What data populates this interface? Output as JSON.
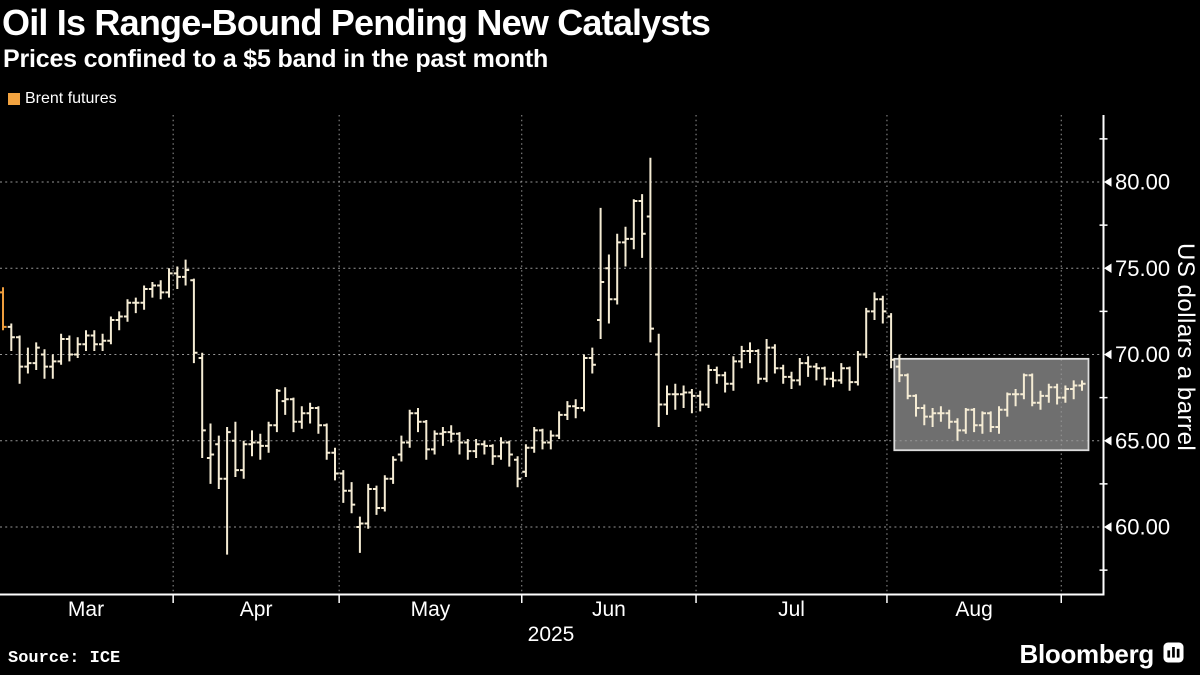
{
  "header": {
    "title": "Oil Is Range-Bound Pending New Catalysts",
    "subtitle": "Prices confined to a $5 band in the past month"
  },
  "legend": {
    "label": "Brent futures",
    "swatch_color": "#f2a340"
  },
  "footer": {
    "source": "Source: ICE",
    "brand": "Bloomberg"
  },
  "y_axis": {
    "title": "US dollars a barrel",
    "major_ticks": [
      {
        "value": 80,
        "label": "80.00"
      },
      {
        "value": 75,
        "label": "75.00"
      },
      {
        "value": 70,
        "label": "70.00"
      },
      {
        "value": 65,
        "label": "65.00"
      },
      {
        "value": 60,
        "label": "60.00"
      }
    ],
    "minor_tick_values": [
      82.5,
      77.5,
      72.5,
      67.5,
      62.5,
      57.5
    ]
  },
  "x_axis": {
    "year_label": "2025",
    "months": [
      {
        "label": "Mar",
        "bars": 21
      },
      {
        "label": "Apr",
        "bars": 20
      },
      {
        "label": "May",
        "bars": 22
      },
      {
        "label": "Jun",
        "bars": 21
      },
      {
        "label": "Jul",
        "bars": 23
      },
      {
        "label": "Aug",
        "bars": 21
      },
      {
        "label": "",
        "bars": 3
      }
    ]
  },
  "chart_data": {
    "type": "ohlc-bar",
    "series": "Brent futures",
    "unit": "US dollars a barrel",
    "ylim_labeled": [
      60,
      80
    ],
    "bar_format": "open-high-low-close",
    "highlight_box": {
      "start_index": 107,
      "end_index": 130,
      "price_top": 69.75,
      "price_bottom": 64.45
    },
    "bars": [
      [
        73.6,
        73.9,
        71.4,
        71.6
      ],
      [
        71.6,
        71.8,
        70.2,
        71.0
      ],
      [
        71.0,
        71.1,
        68.3,
        69.3
      ],
      [
        69.3,
        70.4,
        68.9,
        69.5
      ],
      [
        69.5,
        70.7,
        69.1,
        70.4
      ],
      [
        70.0,
        70.3,
        68.6,
        69.3
      ],
      [
        69.3,
        70.0,
        68.6,
        69.6
      ],
      [
        69.6,
        71.2,
        69.4,
        70.9
      ],
      [
        70.9,
        71.1,
        69.6,
        70.0
      ],
      [
        70.0,
        71.0,
        69.8,
        70.6
      ],
      [
        70.6,
        71.4,
        70.2,
        71.1
      ],
      [
        71.1,
        71.4,
        70.2,
        70.6
      ],
      [
        70.6,
        71.2,
        70.2,
        70.8
      ],
      [
        70.8,
        72.2,
        70.6,
        72.0
      ],
      [
        72.0,
        72.5,
        71.4,
        72.2
      ],
      [
        72.2,
        73.2,
        71.9,
        73.0
      ],
      [
        73.0,
        73.3,
        72.4,
        73.0
      ],
      [
        73.0,
        74.0,
        72.6,
        73.8
      ],
      [
        73.8,
        74.2,
        73.3,
        74.0
      ],
      [
        74.0,
        74.3,
        73.2,
        73.6
      ],
      [
        73.6,
        75.0,
        73.3,
        74.7
      ],
      [
        74.7,
        75.1,
        73.8,
        74.5
      ],
      [
        74.5,
        75.5,
        74.0,
        74.9
      ],
      [
        74.3,
        74.4,
        69.5,
        70.1
      ],
      [
        69.8,
        70.1,
        64.0,
        65.6
      ],
      [
        64.0,
        66.0,
        62.5,
        64.2
      ],
      [
        64.8,
        65.3,
        62.2,
        62.8
      ],
      [
        62.8,
        65.8,
        58.4,
        65.5
      ],
      [
        65.0,
        66.1,
        62.9,
        63.3
      ],
      [
        63.3,
        65.0,
        62.8,
        64.8
      ],
      [
        64.8,
        65.6,
        64.1,
        64.9
      ],
      [
        64.9,
        65.4,
        63.9,
        64.7
      ],
      [
        64.7,
        66.1,
        64.3,
        65.9
      ],
      [
        65.9,
        68.0,
        65.5,
        67.9
      ],
      [
        67.3,
        68.1,
        66.5,
        67.4
      ],
      [
        67.4,
        67.5,
        65.5,
        66.1
      ],
      [
        66.1,
        67.0,
        65.7,
        66.6
      ],
      [
        66.6,
        67.2,
        66.0,
        66.9
      ],
      [
        66.9,
        67.0,
        65.4,
        65.9
      ],
      [
        65.9,
        66.0,
        63.9,
        64.3
      ],
      [
        64.3,
        64.6,
        62.7,
        63.1
      ],
      [
        63.1,
        63.3,
        61.4,
        62.1
      ],
      [
        62.1,
        62.6,
        60.8,
        61.3
      ],
      [
        60.0,
        60.6,
        58.5,
        60.2
      ],
      [
        60.2,
        62.5,
        59.9,
        62.2
      ],
      [
        62.2,
        62.4,
        60.7,
        61.1
      ],
      [
        61.1,
        63.0,
        60.9,
        62.8
      ],
      [
        62.8,
        64.1,
        62.5,
        63.9
      ],
      [
        64.2,
        65.3,
        63.8,
        64.9
      ],
      [
        64.9,
        66.8,
        64.6,
        66.6
      ],
      [
        66.6,
        66.9,
        65.5,
        66.1
      ],
      [
        66.1,
        66.2,
        63.9,
        64.5
      ],
      [
        64.5,
        65.6,
        64.2,
        65.4
      ],
      [
        65.4,
        65.8,
        64.7,
        65.5
      ],
      [
        65.5,
        65.9,
        64.9,
        65.4
      ],
      [
        65.4,
        65.5,
        64.2,
        64.9
      ],
      [
        64.9,
        65.1,
        63.9,
        64.4
      ],
      [
        64.4,
        65.1,
        64.0,
        64.8
      ],
      [
        64.8,
        65.0,
        64.2,
        64.7
      ],
      [
        64.7,
        64.8,
        63.6,
        64.1
      ],
      [
        64.1,
        65.2,
        63.9,
        64.9
      ],
      [
        64.9,
        65.0,
        63.5,
        64.2
      ],
      [
        63.9,
        64.1,
        62.3,
        62.8
      ],
      [
        63.2,
        64.8,
        62.9,
        64.6
      ],
      [
        64.6,
        65.8,
        64.3,
        65.6
      ],
      [
        65.6,
        65.7,
        64.5,
        64.9
      ],
      [
        64.9,
        65.6,
        64.5,
        65.3
      ],
      [
        65.3,
        66.7,
        65.1,
        66.5
      ],
      [
        66.5,
        67.3,
        66.2,
        67.0
      ],
      [
        67.0,
        67.4,
        66.3,
        66.9
      ],
      [
        66.9,
        70.0,
        66.7,
        69.8
      ],
      [
        69.8,
        70.4,
        68.9,
        69.4
      ],
      [
        72.0,
        78.5,
        70.9,
        74.2
      ],
      [
        75.0,
        75.8,
        71.8,
        73.2
      ],
      [
        73.2,
        77.0,
        72.9,
        76.5
      ],
      [
        76.5,
        77.4,
        75.1,
        76.7
      ],
      [
        76.7,
        79.0,
        76.1,
        78.9
      ],
      [
        78.9,
        79.3,
        75.6,
        77.0
      ],
      [
        78.0,
        81.4,
        70.7,
        71.5
      ],
      [
        70.0,
        71.2,
        65.8,
        67.1
      ],
      [
        67.1,
        68.2,
        66.5,
        67.7
      ],
      [
        67.7,
        68.3,
        66.8,
        67.7
      ],
      [
        67.7,
        68.2,
        66.9,
        67.8
      ],
      [
        67.8,
        68.0,
        66.6,
        67.6
      ],
      [
        67.6,
        67.9,
        66.7,
        67.1
      ],
      [
        67.1,
        69.4,
        66.9,
        69.1
      ],
      [
        69.1,
        69.3,
        68.3,
        68.8
      ],
      [
        68.8,
        69.0,
        67.8,
        68.3
      ],
      [
        68.3,
        69.9,
        67.9,
        69.6
      ],
      [
        69.6,
        70.5,
        69.2,
        70.2
      ],
      [
        70.2,
        70.7,
        69.5,
        70.2
      ],
      [
        70.2,
        70.3,
        68.3,
        68.6
      ],
      [
        68.6,
        70.9,
        68.4,
        70.4
      ],
      [
        70.4,
        70.6,
        68.9,
        69.2
      ],
      [
        69.2,
        69.4,
        68.3,
        68.7
      ],
      [
        68.7,
        69.0,
        68.0,
        68.5
      ],
      [
        68.5,
        69.8,
        68.2,
        69.5
      ],
      [
        69.5,
        69.9,
        68.7,
        69.3
      ],
      [
        69.3,
        69.5,
        68.5,
        69.2
      ],
      [
        69.2,
        69.3,
        68.2,
        68.6
      ],
      [
        68.6,
        69.0,
        68.1,
        68.5
      ],
      [
        68.5,
        69.5,
        68.3,
        69.2
      ],
      [
        69.2,
        69.3,
        67.9,
        68.4
      ],
      [
        68.4,
        70.2,
        68.2,
        70.0
      ],
      [
        70.0,
        72.7,
        69.8,
        72.5
      ],
      [
        72.5,
        73.6,
        72.0,
        73.2
      ],
      [
        73.2,
        73.4,
        71.8,
        72.5
      ],
      [
        72.2,
        72.4,
        69.2,
        69.7
      ],
      [
        69.3,
        70.0,
        68.4,
        68.8
      ],
      [
        68.8,
        68.9,
        67.4,
        67.6
      ],
      [
        67.6,
        67.7,
        66.4,
        66.9
      ],
      [
        66.9,
        67.1,
        65.9,
        66.4
      ],
      [
        66.4,
        66.9,
        65.8,
        66.6
      ],
      [
        66.6,
        67.0,
        66.1,
        66.6
      ],
      [
        66.6,
        66.8,
        65.7,
        66.1
      ],
      [
        66.1,
        66.3,
        65.0,
        65.6
      ],
      [
        65.6,
        66.9,
        65.4,
        66.8
      ],
      [
        66.8,
        66.9,
        65.5,
        65.9
      ],
      [
        65.9,
        66.7,
        65.4,
        66.6
      ],
      [
        66.6,
        66.7,
        65.5,
        65.8
      ],
      [
        65.8,
        67.0,
        65.4,
        66.8
      ],
      [
        66.8,
        67.8,
        66.4,
        67.7
      ],
      [
        67.7,
        68.0,
        67.0,
        67.7
      ],
      [
        67.7,
        68.9,
        67.4,
        68.8
      ],
      [
        68.8,
        68.9,
        67.0,
        67.2
      ],
      [
        67.2,
        67.9,
        66.8,
        67.6
      ],
      [
        67.6,
        68.3,
        67.2,
        68.1
      ],
      [
        68.1,
        68.3,
        67.1,
        67.5
      ],
      [
        67.5,
        68.2,
        67.2,
        68.0
      ],
      [
        68.0,
        68.5,
        67.4,
        68.2
      ],
      [
        68.2,
        68.5,
        67.9,
        68.3
      ]
    ]
  },
  "colors": {
    "background": "#000000",
    "text": "#ffffff",
    "axis": "#ffffff",
    "grid": "#969696",
    "bar": "#f5ecd4",
    "first_bar": "#ef9e3d",
    "highlight_fill": "#6f6f6f",
    "highlight_border": "#dcdcdc"
  }
}
